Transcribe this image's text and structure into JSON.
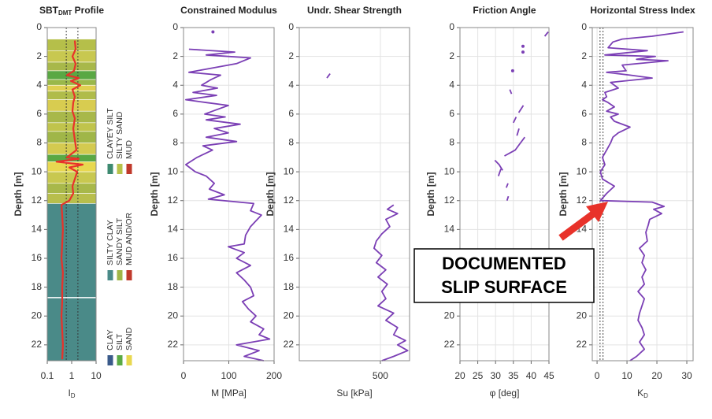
{
  "chart_data": [
    {
      "type": "line",
      "title": [
        {
          "text": "SBT"
        },
        {
          "text": "DMT",
          "sub": true
        },
        {
          "text": " Profile"
        }
      ],
      "x_label": [
        {
          "text": "I"
        },
        {
          "text": "D",
          "sub": true
        }
      ],
      "y_label": "Depth [m]",
      "log_x": true,
      "xlim": [
        0.1,
        10
      ],
      "xticks": [
        0.1,
        1,
        10
      ],
      "ylim": [
        0,
        23.1
      ],
      "yticks": [
        0,
        2,
        4,
        6,
        8,
        10,
        12,
        14,
        16,
        18,
        20,
        22
      ],
      "grid": false,
      "color": "#e8322a",
      "reference_lines": [
        0.6,
        1.8
      ],
      "layers": [
        {
          "top": 0.8,
          "bottom": 1.6,
          "color": "#b5bf4a"
        },
        {
          "top": 1.6,
          "bottom": 2.4,
          "color": "#c8c850"
        },
        {
          "top": 2.4,
          "bottom": 3.0,
          "color": "#a8b84a"
        },
        {
          "top": 3.0,
          "bottom": 3.6,
          "color": "#5aa844"
        },
        {
          "top": 3.6,
          "bottom": 4.0,
          "color": "#9ab84a"
        },
        {
          "top": 4.0,
          "bottom": 4.4,
          "color": "#e0d050"
        },
        {
          "top": 4.4,
          "bottom": 5.0,
          "color": "#b0bc4a"
        },
        {
          "top": 5.0,
          "bottom": 5.8,
          "color": "#d8cc50"
        },
        {
          "top": 5.8,
          "bottom": 6.6,
          "color": "#a8b84a"
        },
        {
          "top": 6.6,
          "bottom": 7.2,
          "color": "#c0c44c"
        },
        {
          "top": 7.2,
          "bottom": 8.0,
          "color": "#a0b648"
        },
        {
          "top": 8.0,
          "bottom": 8.8,
          "color": "#d4ca50"
        },
        {
          "top": 8.8,
          "bottom": 9.3,
          "color": "#5aa844"
        },
        {
          "top": 9.3,
          "bottom": 10.0,
          "color": "#e8d850"
        },
        {
          "top": 10.0,
          "bottom": 10.8,
          "color": "#c8c850"
        },
        {
          "top": 10.8,
          "bottom": 11.5,
          "color": "#a8b84a"
        },
        {
          "top": 11.5,
          "bottom": 12.2,
          "color": "#b8be4c"
        },
        {
          "top": 12.2,
          "bottom": 18.7,
          "color": "#4a8a88"
        },
        {
          "top": 18.75,
          "bottom": 23.1,
          "color": "#4a8a88"
        }
      ],
      "legend": [
        {
          "name": "CLAYEY SILT",
          "color": "#3e8a70"
        },
        {
          "name": "SILTY SAND",
          "color": "#b8c24a"
        },
        {
          "name": "MUD",
          "color": "#c0392b"
        },
        {
          "name": "SILTY CLAY",
          "color": "#4a8a88"
        },
        {
          "name": "SANDY SILT",
          "color": "#a0b648"
        },
        {
          "name": "MUD AND/OR",
          "color": "#c0392b"
        },
        {
          "name": "CLAY",
          "color": "#3a5a8a"
        },
        {
          "name": "SILT",
          "color": "#5aaa44"
        },
        {
          "name": "SAND",
          "color": "#e8d850"
        }
      ],
      "depth": [
        0.9,
        1.5,
        2.0,
        2.5,
        3.0,
        3.3,
        3.5,
        3.7,
        4.0,
        4.3,
        4.8,
        5.2,
        5.8,
        6.3,
        7.0,
        7.8,
        8.5,
        9.0,
        9.1,
        9.3,
        9.5,
        9.7,
        10.0,
        10.5,
        11.0,
        11.5,
        12.0,
        12.3,
        13,
        14,
        15,
        16,
        17,
        18,
        19,
        20,
        21,
        22,
        23
      ],
      "values": [
        1.35,
        1.45,
        1.08,
        1.45,
        1.25,
        0.64,
        1.95,
        0.93,
        2.26,
        1.08,
        1.35,
        1.16,
        1.08,
        1.35,
        1.16,
        1.35,
        1.56,
        0.64,
        1.95,
        0.24,
        2.83,
        0.8,
        1.68,
        1.35,
        1.08,
        1.16,
        0.8,
        0.38,
        0.41,
        0.44,
        0.41,
        0.38,
        0.44,
        0.41,
        0.41,
        0.38,
        0.41,
        0.44,
        0.41
      ]
    },
    {
      "type": "line",
      "title": [
        {
          "text": "Constrained Modulus"
        }
      ],
      "x_label": [
        {
          "text": "M [MPa]"
        }
      ],
      "y_label": "Depth [m]",
      "xlim": [
        0,
        200
      ],
      "xticks": [
        0,
        100,
        200
      ],
      "ylim": [
        0,
        23.1
      ],
      "yticks": [
        0,
        2,
        4,
        6,
        8,
        10,
        12,
        14,
        16,
        18,
        20,
        22
      ],
      "grid": true,
      "color": "#7b3fb5",
      "depth": [
        0.3,
        null,
        1.5,
        1.7,
        1.9,
        2.1,
        2.5,
        2.9,
        3.1,
        3.3,
        3.6,
        4.0,
        4.2,
        4.5,
        4.7,
        5.0,
        5.2,
        5.4,
        5.8,
        6.0,
        6.2,
        6.4,
        6.7,
        7.0,
        7.3,
        7.6,
        7.9,
        8.2,
        8.5,
        9.0,
        9.5,
        10.0,
        10.3,
        10.8,
        11.2,
        11.6,
        11.9,
        12.2,
        12.7,
        13.0,
        13.4,
        13.8,
        14.4,
        15.0,
        15.2,
        15.6,
        16.0,
        16.5,
        17.0,
        17.5,
        18.0,
        18.6,
        19.0,
        19.5,
        20.0,
        20.4,
        20.9,
        21.3,
        21.6,
        22.0,
        22.4,
        22.8,
        23.1
      ],
      "values": [
        65,
        null,
        12,
        113,
        50,
        148,
        117,
        47,
        12,
        82,
        61,
        40,
        75,
        21,
        73,
        5,
        50,
        99,
        64,
        47,
        92,
        50,
        125,
        68,
        99,
        50,
        117,
        43,
        64,
        30,
        5,
        26,
        50,
        68,
        57,
        90,
        55,
        155,
        148,
        172,
        160,
        148,
        137,
        134,
        99,
        134,
        117,
        148,
        117,
        134,
        148,
        155,
        130,
        143,
        160,
        148,
        177,
        167,
        190,
        117,
        167,
        134,
        177
      ]
    },
    {
      "type": "line",
      "title": [
        {
          "text": "Undr. Shear Strength"
        }
      ],
      "x_label": [
        {
          "text": "Su [kPa]"
        }
      ],
      "y_label": "Depth [m]",
      "xlim": [
        0,
        680
      ],
      "xticks": [
        500
      ],
      "ylim": [
        0,
        23.1
      ],
      "yticks": [
        0,
        2,
        4,
        6,
        8,
        10,
        12,
        14,
        16,
        18,
        20,
        22
      ],
      "grid": true,
      "color": "#7b3fb5",
      "depth": [
        3.2,
        3.5,
        null,
        12.3,
        12.6,
        12.9,
        13.3,
        13.8,
        14.3,
        14.8,
        15.3,
        15.8,
        16.3,
        16.8,
        17.3,
        17.8,
        18.3,
        18.8,
        19.3,
        19.8,
        20.3,
        20.8,
        21.3,
        21.7,
        22.0,
        22.4,
        22.8,
        23.1
      ],
      "values": [
        190,
        170,
        null,
        582,
        543,
        606,
        534,
        558,
        509,
        475,
        461,
        509,
        475,
        534,
        485,
        543,
        509,
        534,
        485,
        582,
        534,
        606,
        582,
        655,
        606,
        669,
        582,
        509
      ]
    },
    {
      "type": "line",
      "title": [
        {
          "text": "Friction Angle"
        }
      ],
      "x_label": [
        {
          "text": "φ [deg]"
        }
      ],
      "y_label": "Depth [m]",
      "xlim": [
        20,
        45
      ],
      "xticks": [
        20,
        25,
        30,
        35,
        40,
        45
      ],
      "ylim": [
        0,
        23.1
      ],
      "yticks": [
        0,
        2,
        4,
        6,
        8,
        10,
        12,
        14,
        16,
        18,
        20,
        22
      ],
      "grid": true,
      "color": "#7b3fb5",
      "depth": [
        0.3,
        0.6,
        null,
        1.3,
        null,
        1.7,
        null,
        3.0,
        null,
        4.3,
        4.6,
        null,
        5.4,
        5.9,
        null,
        6.2,
        6.6,
        null,
        7.0,
        7.5,
        null,
        7.6,
        8.0,
        8.5,
        8.9,
        null,
        9.2,
        9.5,
        9.9,
        null,
        9.8,
        10.3,
        null,
        10.8,
        11.1,
        null,
        11.7,
        12.0
      ],
      "values": [
        44.8,
        43.8,
        null,
        37.7,
        null,
        37.7,
        null,
        34.8,
        null,
        34.0,
        34.5,
        null,
        37.8,
        36.5,
        null,
        35.8,
        35.0,
        null,
        36.6,
        36.0,
        null,
        38.2,
        37.0,
        35.5,
        32.5,
        null,
        29.8,
        31.0,
        32.0,
        null,
        31.5,
        30.8,
        null,
        33.5,
        33.0,
        null,
        33.6,
        33.2
      ]
    },
    {
      "type": "line",
      "title": [
        {
          "text": "Horizontal Stress Index"
        }
      ],
      "x_label": [
        {
          "text": "K"
        },
        {
          "text": "D",
          "sub": true
        }
      ],
      "y_label": "Depth [m]",
      "xlim": [
        -1.6,
        32.1
      ],
      "xticks": [
        0,
        10,
        20,
        30
      ],
      "ylim": [
        0,
        23.1
      ],
      "yticks": [
        0,
        2,
        4,
        6,
        8,
        10,
        12,
        14,
        16,
        18,
        20,
        22
      ],
      "grid": true,
      "color": "#7b3fb5",
      "reference_lines": [
        1,
        2
      ],
      "depth": [
        0.3,
        0.6,
        0.8,
        1.0,
        1.4,
        1.6,
        1.9,
        2.0,
        2.2,
        2.3,
        2.6,
        3.0,
        3.1,
        3.3,
        3.5,
        3.8,
        4.2,
        4.5,
        4.8,
        5.0,
        5.2,
        5.5,
        5.8,
        6.0,
        6.2,
        6.5,
        6.9,
        7.3,
        7.6,
        8.0,
        8.5,
        9.0,
        9.5,
        10.0,
        10.5,
        11.0,
        11.5,
        12.0,
        12.1,
        12.4,
        12.6,
        12.9,
        13.3,
        13.7,
        14.2,
        14.8,
        15.3,
        15.8,
        16.3,
        16.8,
        17.3,
        17.8,
        18.3,
        18.8,
        19.3,
        19.8,
        20.3,
        20.8,
        21.3,
        21.8,
        22.3,
        22.8,
        23.1
      ],
      "values": [
        28.9,
        18.4,
        8.4,
        5.3,
        3.7,
        16.8,
        2.6,
        19.5,
        13.2,
        23.7,
        8.4,
        9.7,
        3.2,
        11,
        18.4,
        4.5,
        7.1,
        2.6,
        3.2,
        1.8,
        3.7,
        5.8,
        3.2,
        7.1,
        4.5,
        5.8,
        11,
        7.1,
        5.3,
        4.5,
        3.2,
        1.8,
        2.6,
        1.1,
        1.8,
        5.8,
        3.2,
        1.1,
        18.4,
        22.4,
        18.9,
        21.6,
        17.6,
        17.1,
        16.3,
        16.8,
        14.2,
        15.8,
        15,
        16.3,
        15,
        15.8,
        13.7,
        15.8,
        15,
        14.2,
        13.7,
        15,
        15.8,
        14.2,
        15.8,
        13.2,
        11
      ]
    }
  ],
  "annotation": {
    "lines": [
      "DOCUMENTED",
      "SLIP SURFACE"
    ]
  }
}
